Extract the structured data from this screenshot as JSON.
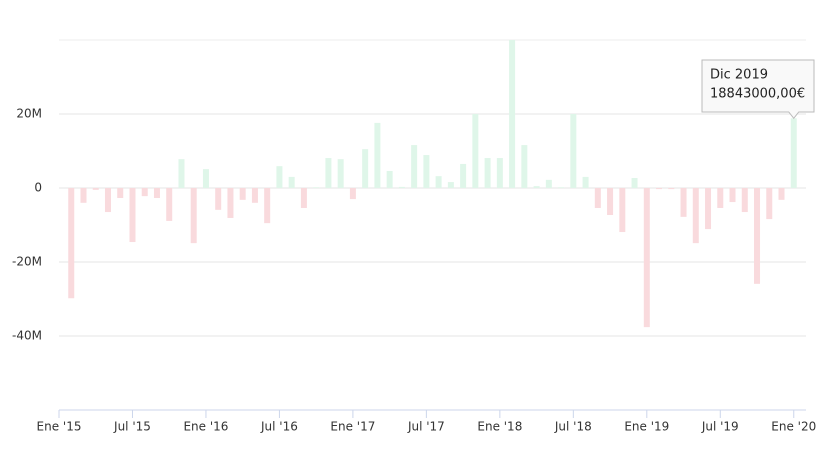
{
  "chart_data": {
    "type": "bar",
    "categories": [
      null,
      null,
      null,
      null,
      null,
      null,
      null,
      null,
      null,
      null,
      null,
      null,
      null,
      null,
      null,
      null,
      null,
      null,
      null,
      null,
      null,
      null,
      null,
      null,
      null,
      null,
      null,
      null,
      null,
      null,
      null,
      null,
      null,
      null,
      null,
      null,
      null,
      null,
      null,
      null,
      null,
      null,
      null,
      null,
      null,
      null,
      null,
      null,
      null,
      null,
      null,
      null,
      null,
      null,
      null,
      null,
      null,
      null,
      null,
      "Dic 2019"
    ],
    "values": [
      -29800000,
      -4000000,
      -500000,
      -6500000,
      -2700000,
      -14600000,
      -2200000,
      -2700000,
      -8900000,
      7800000,
      -14900000,
      5100000,
      -5900000,
      -8100000,
      -3200000,
      -4000000,
      -9500000,
      5900000,
      3000000,
      -5400000,
      200000,
      8100000,
      7800000,
      -3000000,
      10500000,
      17600000,
      4600000,
      300000,
      11600000,
      8900000,
      3200000,
      1600000,
      6500000,
      20000000,
      8100000,
      8100000,
      40000000,
      11600000,
      500000,
      2200000,
      200000,
      20000000,
      3000000,
      -5400000,
      -7300000,
      -11900000,
      2700000,
      -37600000,
      -300000,
      -300000,
      -7800000,
      -14900000,
      -11100000,
      -5400000,
      -3800000,
      -6500000,
      -25900000,
      -8400000,
      -3200000,
      18843000
    ],
    "value_labels": [
      null,
      null,
      null,
      null,
      null,
      null,
      null,
      null,
      null,
      null,
      null,
      null,
      null,
      null,
      null,
      null,
      null,
      null,
      null,
      null,
      null,
      null,
      null,
      null,
      null,
      null,
      null,
      null,
      null,
      null,
      null,
      null,
      null,
      null,
      null,
      null,
      null,
      null,
      null,
      null,
      null,
      null,
      null,
      null,
      null,
      null,
      null,
      null,
      null,
      null,
      null,
      null,
      null,
      null,
      null,
      null,
      null,
      null,
      null,
      "18843000,00€"
    ],
    "positive_color": "#dff6e9",
    "negative_color": "#f9dadd",
    "ylim": [
      -60000000,
      40000000
    ],
    "yticks": [
      {
        "value": -40000000,
        "label": "-40M"
      },
      {
        "value": -20000000,
        "label": "-20M"
      },
      0,
      {
        "value": 20000000,
        "label": "20M"
      }
    ],
    "xlim": [
      -1,
      60
    ],
    "xticks": [
      {
        "value": -1,
        "label": "Ene '15"
      },
      {
        "value": 5,
        "label": "Jul '15"
      },
      {
        "value": 11,
        "label": "Ene '16"
      },
      {
        "value": 17,
        "label": "Jul '16"
      },
      {
        "value": 23,
        "label": "Ene '17"
      },
      {
        "value": 29,
        "label": "Jul '17"
      },
      {
        "value": 35,
        "label": "Ene '18"
      },
      {
        "value": 41,
        "label": "Jul '18"
      },
      {
        "value": 47,
        "label": "Ene '19"
      },
      {
        "value": 53,
        "label": "Jul '19"
      },
      {
        "value": 59,
        "label": "Ene '20"
      }
    ],
    "grid": true
  }
}
